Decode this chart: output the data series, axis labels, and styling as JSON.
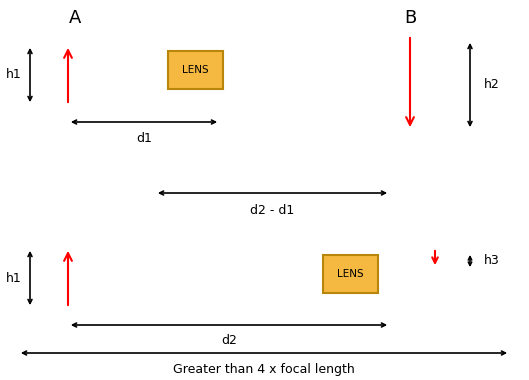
{
  "background_color": "#ffffff",
  "lens_color": "#f5b942",
  "lens_edge_color": "#b8860b",
  "arrow_color_red": "#ff0000",
  "label_A": "A",
  "label_B": "B",
  "label_h1": "h1",
  "label_h2": "h2",
  "label_h3": "h3",
  "label_d1": "d1",
  "label_d2": "d2",
  "label_d2_d1": "d2 - d1",
  "label_focal": "Greater than 4 x focal length",
  "label_LENS": "LENS",
  "fig_width": 5.29,
  "fig_height": 3.8,
  "dpi": 100
}
